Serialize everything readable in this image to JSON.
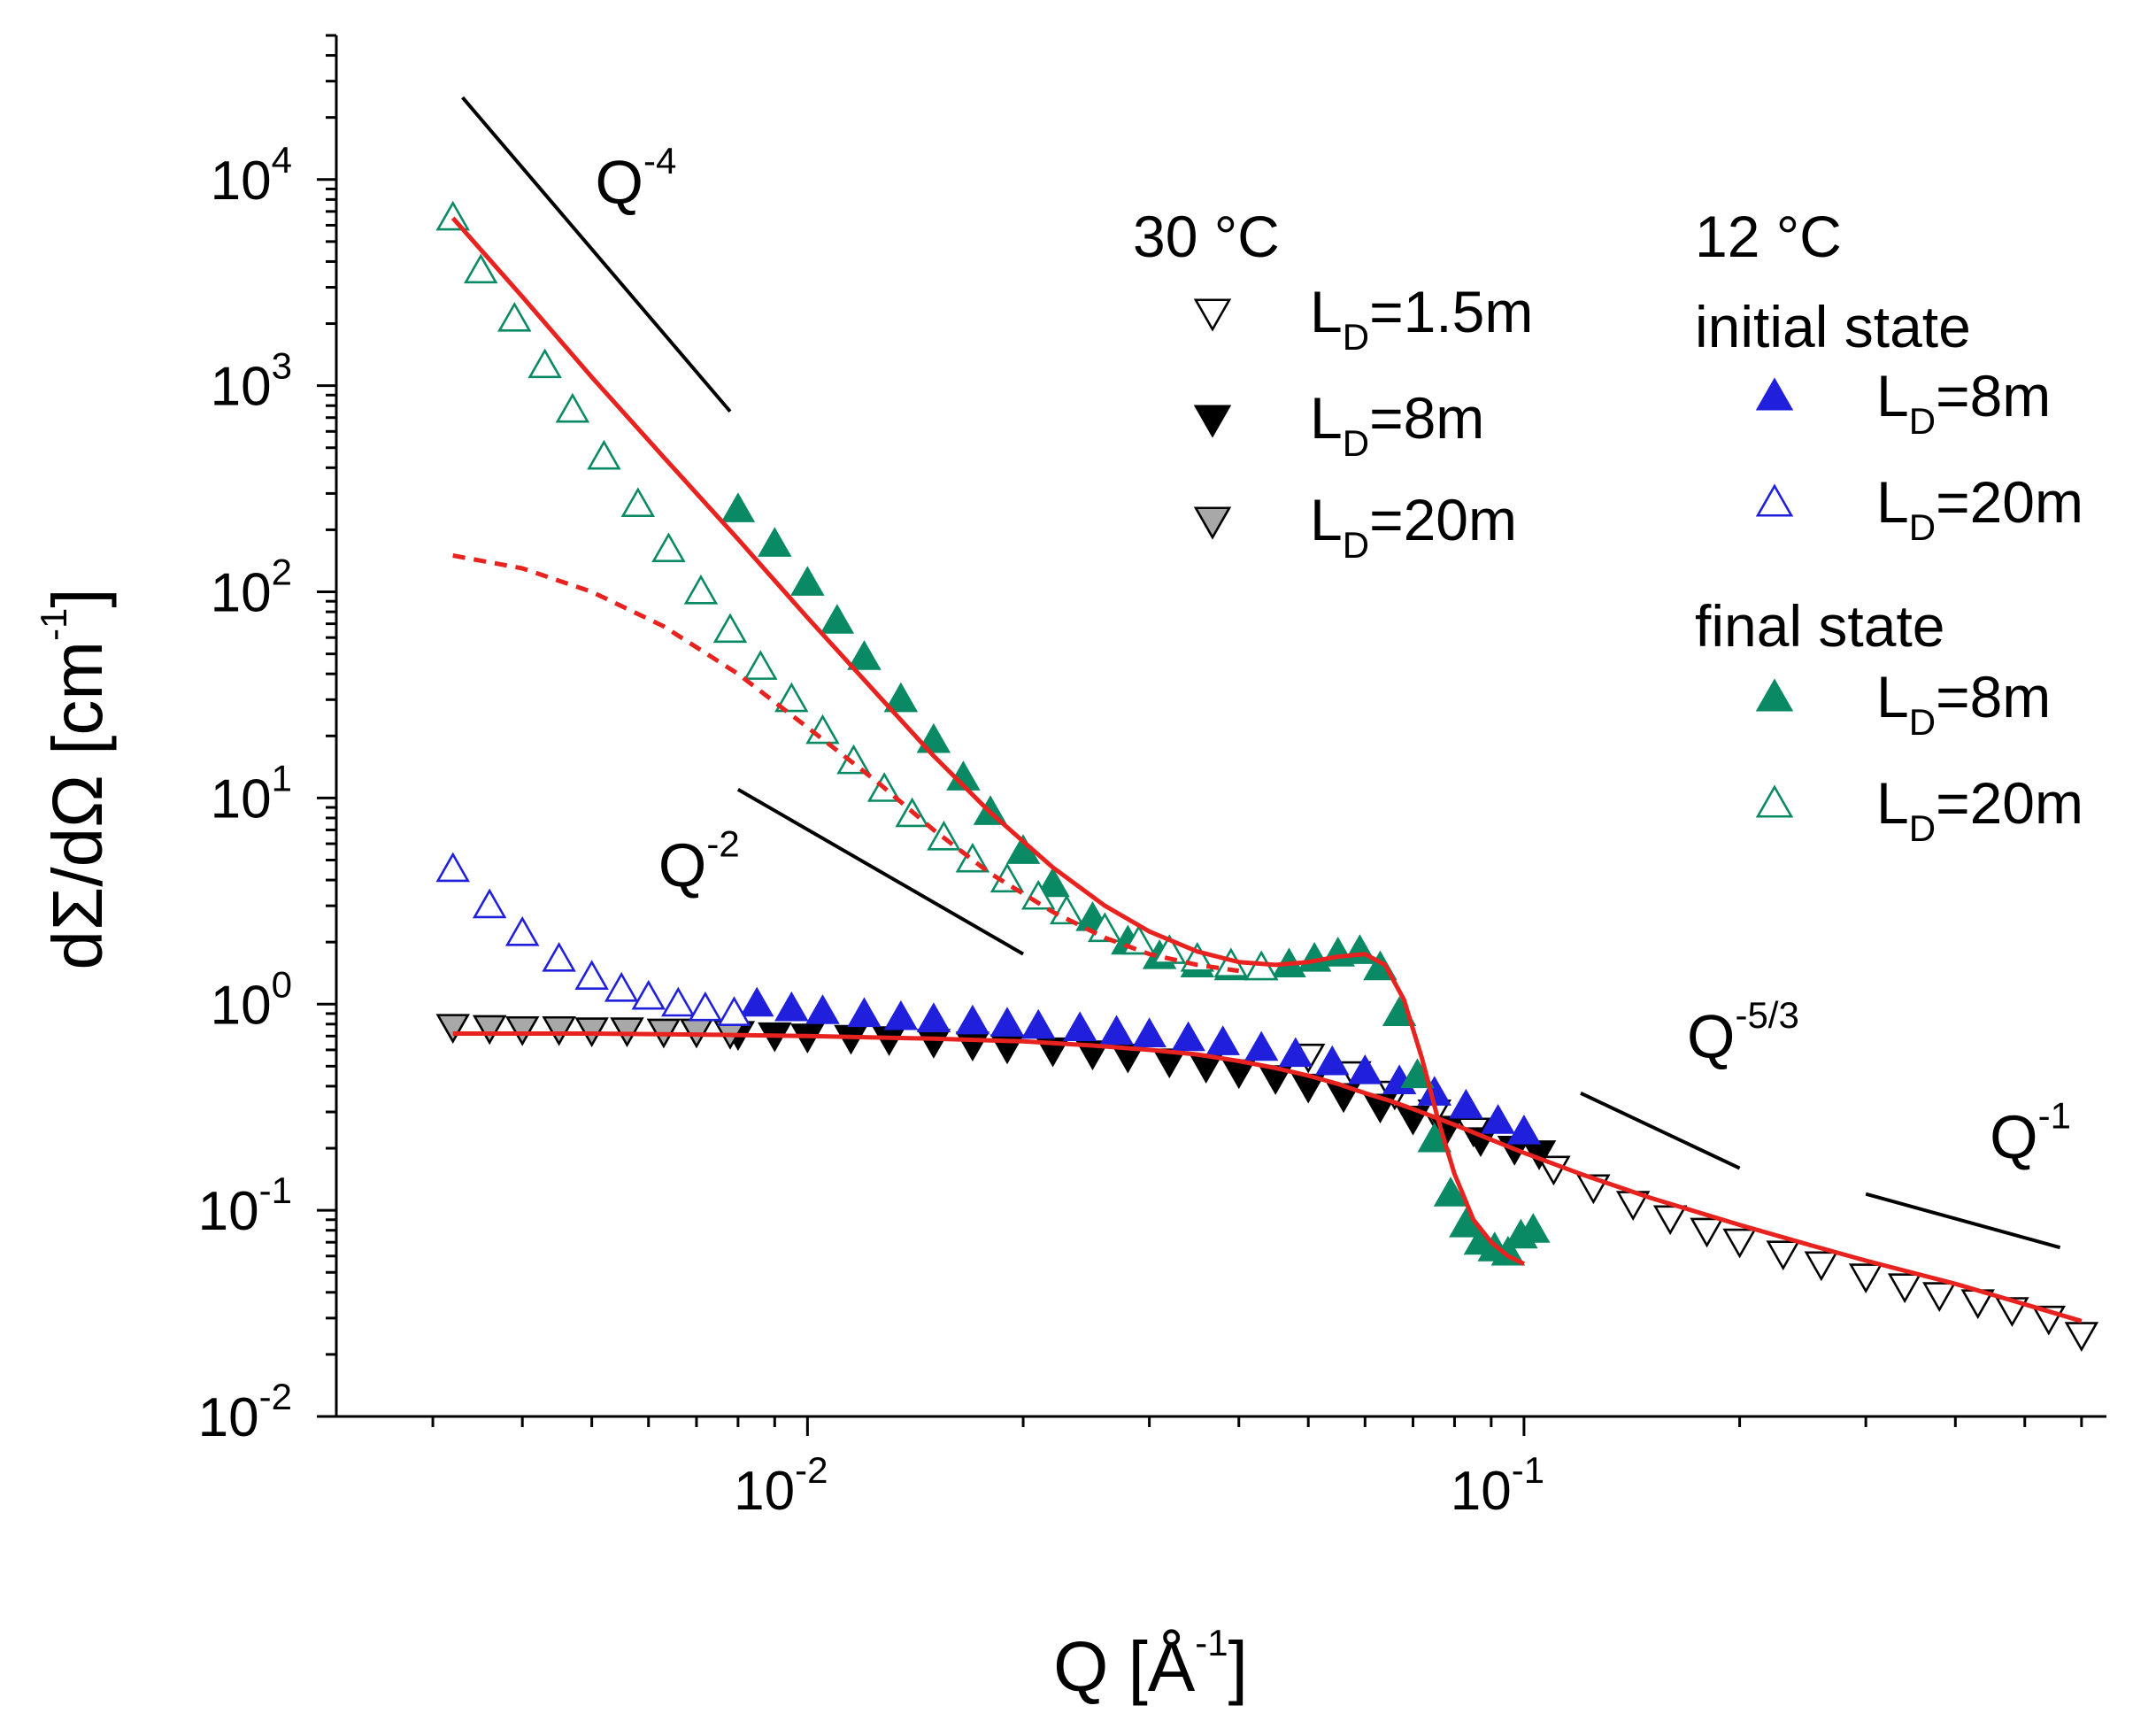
{
  "chart_data": {
    "type": "scatter",
    "title": "",
    "x_scale": "log",
    "y_scale": "log",
    "xlim": [
      0.0022,
      0.65
    ],
    "ylim": [
      0.01,
      50000
    ],
    "xlabel": {
      "main": "Q [Å",
      "sup": "-1",
      "tail": "]"
    },
    "ylabel": {
      "main": "dΣ/dΩ [cm",
      "sup": "-1",
      "tail": "]"
    },
    "x_ticks": [
      {
        "value": 0.01,
        "base": "10",
        "exp": "-2"
      },
      {
        "value": 0.1,
        "base": "10",
        "exp": "-1"
      }
    ],
    "y_ticks": [
      {
        "value": 0.01,
        "base": "10",
        "exp": "-2"
      },
      {
        "value": 0.1,
        "base": "10",
        "exp": "-1"
      },
      {
        "value": 1,
        "base": "10",
        "exp": "0"
      },
      {
        "value": 10,
        "base": "10",
        "exp": "1"
      },
      {
        "value": 100,
        "base": "10",
        "exp": "2"
      },
      {
        "value": 1000,
        "base": "10",
        "exp": "3"
      },
      {
        "value": 10000,
        "base": "10",
        "exp": "4"
      }
    ],
    "legend": {
      "groups": [
        {
          "header": "30 °C",
          "subheader": "",
          "entries": [
            {
              "series": 0,
              "text": "L",
              "sub": "D",
              "tail": "=1.5m"
            },
            {
              "series": 1,
              "text": "L",
              "sub": "D",
              "tail": "=8m"
            },
            {
              "series": 2,
              "text": "L",
              "sub": "D",
              "tail": "=20m"
            }
          ]
        },
        {
          "header": "12 °C",
          "subheader": "initial state",
          "entries": [
            {
              "series": 3,
              "text": "L",
              "sub": "D",
              "tail": "=8m"
            },
            {
              "series": 4,
              "text": "L",
              "sub": "D",
              "tail": "=20m"
            }
          ]
        },
        {
          "header": "",
          "subheader": "final state",
          "entries": [
            {
              "series": 5,
              "text": "L",
              "sub": "D",
              "tail": "=8m"
            },
            {
              "series": 6,
              "text": "L",
              "sub": "D",
              "tail": "=20m"
            }
          ]
        }
      ]
    },
    "series": [
      {
        "name": "30 °C L_D=1.5m",
        "marker": "triangle-down",
        "fill": "#ffffff",
        "stroke": "#000000",
        "x": [
          0.05,
          0.058,
          0.066,
          0.075,
          0.085,
          0.097,
          0.11,
          0.125,
          0.142,
          0.16,
          0.18,
          0.2,
          0.23,
          0.26,
          0.3,
          0.34,
          0.38,
          0.43,
          0.48,
          0.54,
          0.6
        ],
        "y": [
          0.56,
          0.46,
          0.37,
          0.3,
          0.245,
          0.2,
          0.16,
          0.13,
          0.108,
          0.092,
          0.08,
          0.071,
          0.062,
          0.055,
          0.048,
          0.043,
          0.039,
          0.036,
          0.033,
          0.03,
          0.025
        ]
      },
      {
        "name": "30 °C L_D=8m",
        "marker": "triangle-down",
        "fill": "#000000",
        "stroke": "#000000",
        "x": [
          0.008,
          0.009,
          0.01,
          0.0115,
          0.013,
          0.015,
          0.017,
          0.019,
          0.022,
          0.025,
          0.028,
          0.032,
          0.036,
          0.04,
          0.045,
          0.05,
          0.056,
          0.063,
          0.07,
          0.078,
          0.087,
          0.097,
          0.105
        ],
        "y": [
          0.72,
          0.71,
          0.7,
          0.69,
          0.68,
          0.66,
          0.64,
          0.62,
          0.6,
          0.58,
          0.56,
          0.53,
          0.5,
          0.47,
          0.44,
          0.4,
          0.36,
          0.32,
          0.28,
          0.25,
          0.22,
          0.2,
          0.19
        ]
      },
      {
        "name": "30 °C L_D=20m",
        "marker": "triangle-down",
        "fill": "#a8a8a8",
        "stroke": "#000000",
        "x": [
          0.0032,
          0.0036,
          0.004,
          0.0045,
          0.005,
          0.0056,
          0.0063,
          0.007,
          0.0078
        ],
        "y": [
          0.78,
          0.77,
          0.76,
          0.76,
          0.75,
          0.75,
          0.74,
          0.74,
          0.73
        ]
      },
      {
        "name": "12 °C initial L_D=8m",
        "marker": "triangle-up",
        "fill": "#1f1fdc",
        "stroke": "#1f1fdc",
        "x": [
          0.0085,
          0.0095,
          0.0105,
          0.012,
          0.0135,
          0.015,
          0.017,
          0.019,
          0.021,
          0.024,
          0.027,
          0.03,
          0.034,
          0.038,
          0.043,
          0.048,
          0.054,
          0.06,
          0.067,
          0.075,
          0.083,
          0.092,
          0.1
        ],
        "y": [
          1.0,
          0.95,
          0.92,
          0.89,
          0.86,
          0.84,
          0.82,
          0.8,
          0.78,
          0.76,
          0.73,
          0.71,
          0.68,
          0.65,
          0.61,
          0.57,
          0.52,
          0.47,
          0.42,
          0.37,
          0.32,
          0.27,
          0.24
        ]
      },
      {
        "name": "12 °C initial L_D=20m",
        "marker": "triangle-up",
        "fill": "#ffffff",
        "stroke": "#1f1fdc",
        "x": [
          0.0032,
          0.0036,
          0.004,
          0.0045,
          0.005,
          0.0055,
          0.006,
          0.0066,
          0.0072,
          0.0079
        ],
        "y": [
          4.5,
          3.0,
          2.2,
          1.65,
          1.35,
          1.18,
          1.08,
          1.0,
          0.95,
          0.9
        ]
      },
      {
        "name": "12 °C final L_D=8m",
        "marker": "triangle-up",
        "fill": "#0a8a64",
        "stroke": "#0a8a64",
        "x": [
          0.008,
          0.009,
          0.01,
          0.011,
          0.012,
          0.0135,
          0.015,
          0.0165,
          0.018,
          0.02,
          0.022,
          0.025,
          0.028,
          0.031,
          0.035,
          0.039,
          0.043,
          0.047,
          0.051,
          0.055,
          0.059,
          0.063,
          0.067,
          0.071,
          0.075,
          0.079,
          0.083,
          0.087,
          0.091,
          0.095,
          0.099,
          0.103
        ],
        "y": [
          250,
          170,
          110,
          72,
          48,
          30,
          19,
          12.5,
          8.5,
          5.5,
          3.8,
          2.6,
          2.0,
          1.7,
          1.55,
          1.5,
          1.5,
          1.55,
          1.65,
          1.75,
          1.8,
          1.5,
          0.9,
          0.45,
          0.22,
          0.12,
          0.085,
          0.07,
          0.065,
          0.062,
          0.075,
          0.08
        ]
      },
      {
        "name": "12 °C final L_D=20m",
        "marker": "triangle-up",
        "fill": "#ffffff",
        "stroke": "#0a8a64",
        "x": [
          0.0032,
          0.0035,
          0.0039,
          0.0043,
          0.0047,
          0.0052,
          0.0058,
          0.0064,
          0.0071,
          0.0078,
          0.0086,
          0.0095,
          0.0105,
          0.0116,
          0.0128,
          0.014,
          0.0155,
          0.017,
          0.019,
          0.021,
          0.023,
          0.026,
          0.029,
          0.032,
          0.035,
          0.039,
          0.043
        ],
        "y": [
          6500,
          3600,
          2100,
          1250,
          760,
          450,
          265,
          160,
          100,
          65,
          43,
          30,
          21,
          15,
          11,
          8.3,
          6.4,
          5.0,
          4.0,
          3.3,
          2.8,
          2.3,
          2.0,
          1.8,
          1.65,
          1.55,
          1.5
        ]
      }
    ],
    "fit_curves": [
      {
        "name": "fit final state",
        "style": "solid",
        "color": "#e8221e",
        "x": [
          0.0032,
          0.004,
          0.005,
          0.0063,
          0.008,
          0.01,
          0.0125,
          0.015,
          0.018,
          0.022,
          0.026,
          0.03,
          0.035,
          0.04,
          0.045,
          0.05,
          0.055,
          0.06,
          0.064,
          0.068,
          0.072,
          0.076,
          0.08,
          0.085,
          0.09,
          0.095,
          0.1
        ],
        "y": [
          6500,
          2700,
          1100,
          450,
          180,
          75,
          32,
          16,
          8.5,
          4.6,
          3.0,
          2.25,
          1.8,
          1.6,
          1.55,
          1.6,
          1.7,
          1.75,
          1.55,
          1.05,
          0.55,
          0.27,
          0.15,
          0.09,
          0.07,
          0.06,
          0.055
        ]
      },
      {
        "name": "fit initial / 30 °C",
        "style": "solid",
        "color": "#e8221e",
        "x": [
          0.0032,
          0.005,
          0.0075,
          0.01,
          0.015,
          0.02,
          0.025,
          0.03,
          0.035,
          0.04,
          0.045,
          0.05,
          0.055,
          0.06,
          0.065,
          0.07,
          0.08,
          0.09,
          0.1,
          0.12,
          0.15,
          0.2,
          0.25,
          0.3,
          0.4,
          0.5,
          0.6
        ],
        "y": [
          0.72,
          0.72,
          0.71,
          0.7,
          0.68,
          0.66,
          0.63,
          0.6,
          0.57,
          0.53,
          0.49,
          0.45,
          0.41,
          0.37,
          0.34,
          0.31,
          0.26,
          0.22,
          0.19,
          0.15,
          0.115,
          0.085,
          0.068,
          0.057,
          0.044,
          0.035,
          0.029
        ]
      },
      {
        "name": "fit component",
        "style": "dashed",
        "color": "#e8221e",
        "x": [
          0.0032,
          0.004,
          0.005,
          0.0063,
          0.008,
          0.01,
          0.0125,
          0.015,
          0.018,
          0.022,
          0.026,
          0.03,
          0.035,
          0.04
        ],
        "y": [
          150,
          130,
          100,
          68,
          40,
          22,
          12,
          7.0,
          4.3,
          2.8,
          2.1,
          1.75,
          1.55,
          1.45
        ]
      }
    ],
    "slope_guides": [
      {
        "label": "Q",
        "exp": "-4",
        "x": [
          0.0033,
          0.0078
        ],
        "y": [
          25000,
          750
        ]
      },
      {
        "label": "Q",
        "exp": "-2",
        "x": [
          0.008,
          0.02
        ],
        "y": [
          11,
          1.75
        ]
      },
      {
        "label": "Q",
        "exp": "-5/3",
        "x": [
          0.12,
          0.2
        ],
        "y": [
          0.37,
          0.16
        ]
      },
      {
        "label": "Q",
        "exp": "-1",
        "x": [
          0.3,
          0.56
        ],
        "y": [
          0.12,
          0.066
        ]
      }
    ]
  }
}
